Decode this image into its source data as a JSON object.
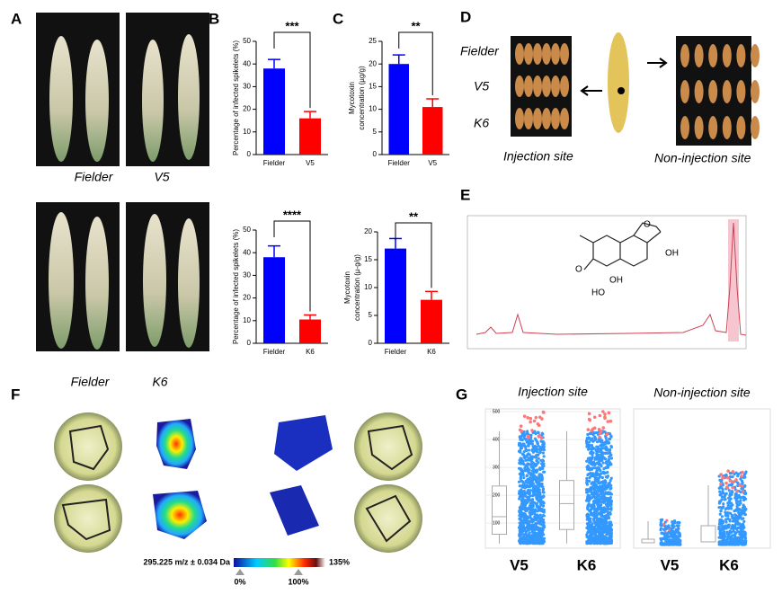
{
  "panels": {
    "a": "A",
    "b": "B",
    "c": "C",
    "d": "D",
    "e": "E",
    "f": "F",
    "g": "G"
  },
  "photos": {
    "top_left": "Fielder",
    "top_right": "V5",
    "bottom_left": "Fielder",
    "bottom_right": "K6"
  },
  "grains": {
    "rows": [
      "Fielder",
      "V5",
      "K6"
    ],
    "injection": "Injection site",
    "non_injection": "Non-injection site"
  },
  "imaging": {
    "ion": "295.225 m/z ± 0.034 Da",
    "scale_max": "135%",
    "scale_low": "0%",
    "scale_high": "100%"
  },
  "non_injection_plot": {
    "title": "Non-injection site",
    "categories": [
      "V5",
      "K6"
    ]
  },
  "chart_data": [
    {
      "type": "bar",
      "ylabel": [
        "Percentage of infected spikelets (%)"
      ],
      "categories": [
        "Fielder",
        "V5"
      ],
      "values": [
        38,
        16
      ],
      "errors": [
        4,
        3
      ],
      "colors": [
        "#0000ff",
        "#ff0000"
      ],
      "significance": "***",
      "ylim": [
        0,
        50
      ],
      "yticks": [
        0,
        10,
        20,
        30,
        40,
        50
      ]
    },
    {
      "type": "bar",
      "ylabel": [
        "Mycotoxin",
        "concentration (µg/g)"
      ],
      "categories": [
        "Fielder",
        "V5"
      ],
      "values": [
        20,
        10.5
      ],
      "errors": [
        2,
        1.8
      ],
      "colors": [
        "#0000ff",
        "#ff0000"
      ],
      "significance": "**",
      "ylim": [
        0,
        25
      ],
      "yticks": [
        0,
        5,
        10,
        15,
        20,
        25
      ]
    },
    {
      "type": "bar",
      "ylabel": [
        "Percentage of infected spikelets (%)"
      ],
      "categories": [
        "Fielder",
        "K6"
      ],
      "values": [
        38,
        10.5
      ],
      "errors": [
        5,
        2
      ],
      "colors": [
        "#0000ff",
        "#ff0000"
      ],
      "significance": "****",
      "ylim": [
        0,
        50
      ],
      "yticks": [
        0,
        10,
        20,
        30,
        40,
        50
      ]
    },
    {
      "type": "bar",
      "ylabel": [
        "Mycotoxin",
        "concentration (µ-g/g)"
      ],
      "categories": [
        "Fielder",
        "K6"
      ],
      "values": [
        17,
        7.8
      ],
      "errors": [
        1.8,
        1.5
      ],
      "colors": [
        "#0000ff",
        "#ff0000"
      ],
      "significance": "**",
      "ylim": [
        0,
        20
      ],
      "yticks": [
        0,
        5,
        10,
        15,
        20
      ]
    },
    {
      "type": "box",
      "title": "Injection site",
      "categories": [
        "V5",
        "K6"
      ],
      "boxes": [
        {
          "min": 27,
          "q1": 60,
          "median": 123,
          "q3": 233,
          "max": 430
        },
        {
          "min": 27,
          "q1": 77,
          "median": 170,
          "q3": 253,
          "max": 430
        }
      ],
      "color": "#3399ff",
      "outlier_color": "#ff7777",
      "ylim": [
        10,
        510
      ],
      "yticks": [
        100,
        200,
        300,
        400,
        500
      ]
    }
  ]
}
